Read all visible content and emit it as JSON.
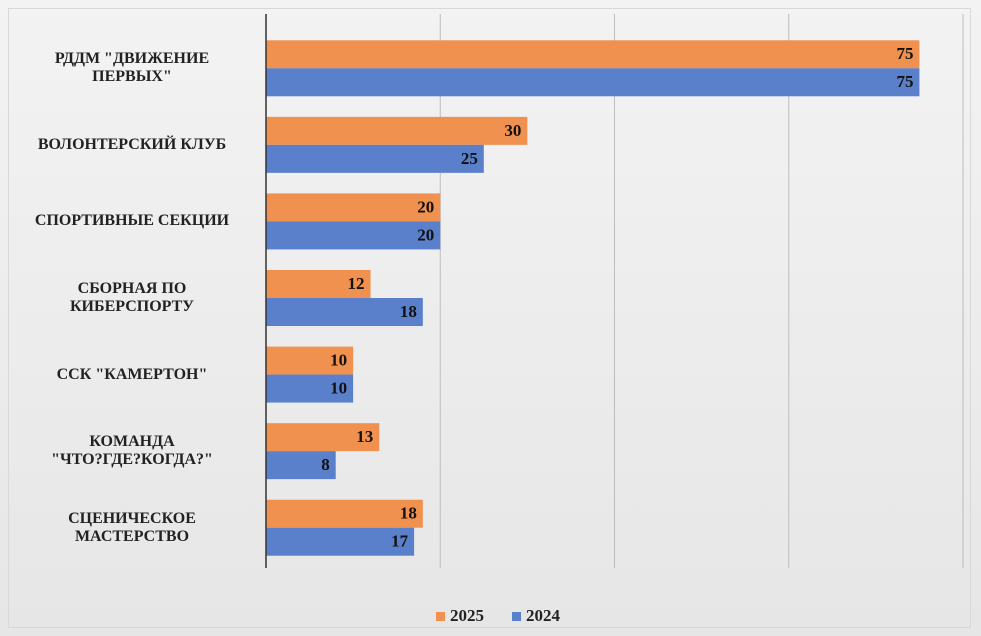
{
  "chart_data": {
    "type": "bar",
    "orientation": "horizontal",
    "categories": [
      "РДДМ \"ДВИЖЕНИЕ\nПЕРВЫХ\"",
      "ВОЛОНТЕРСКИЙ КЛУБ",
      "СПОРТИВНЫЕ СЕКЦИИ",
      "СБОРНАЯ ПО\nКИБЕРСПОРТУ",
      "ССК \"КАМЕРТОН\"",
      "КОМАНДА\n\"ЧТО?ГДЕ?КОГДА?\"",
      "СЦЕНИЧЕСКОЕ\nМАСТЕРСТВО"
    ],
    "series": [
      {
        "name": "2025",
        "color": "#f0914f",
        "values": [
          75,
          30,
          20,
          12,
          10,
          13,
          18
        ]
      },
      {
        "name": "2024",
        "color": "#5a80cc",
        "values": [
          75,
          25,
          20,
          18,
          10,
          8,
          17
        ]
      }
    ],
    "xlim": [
      0,
      80
    ],
    "xticks": [
      0,
      20,
      40,
      60,
      80
    ],
    "grid": true,
    "legend": "bottom"
  }
}
